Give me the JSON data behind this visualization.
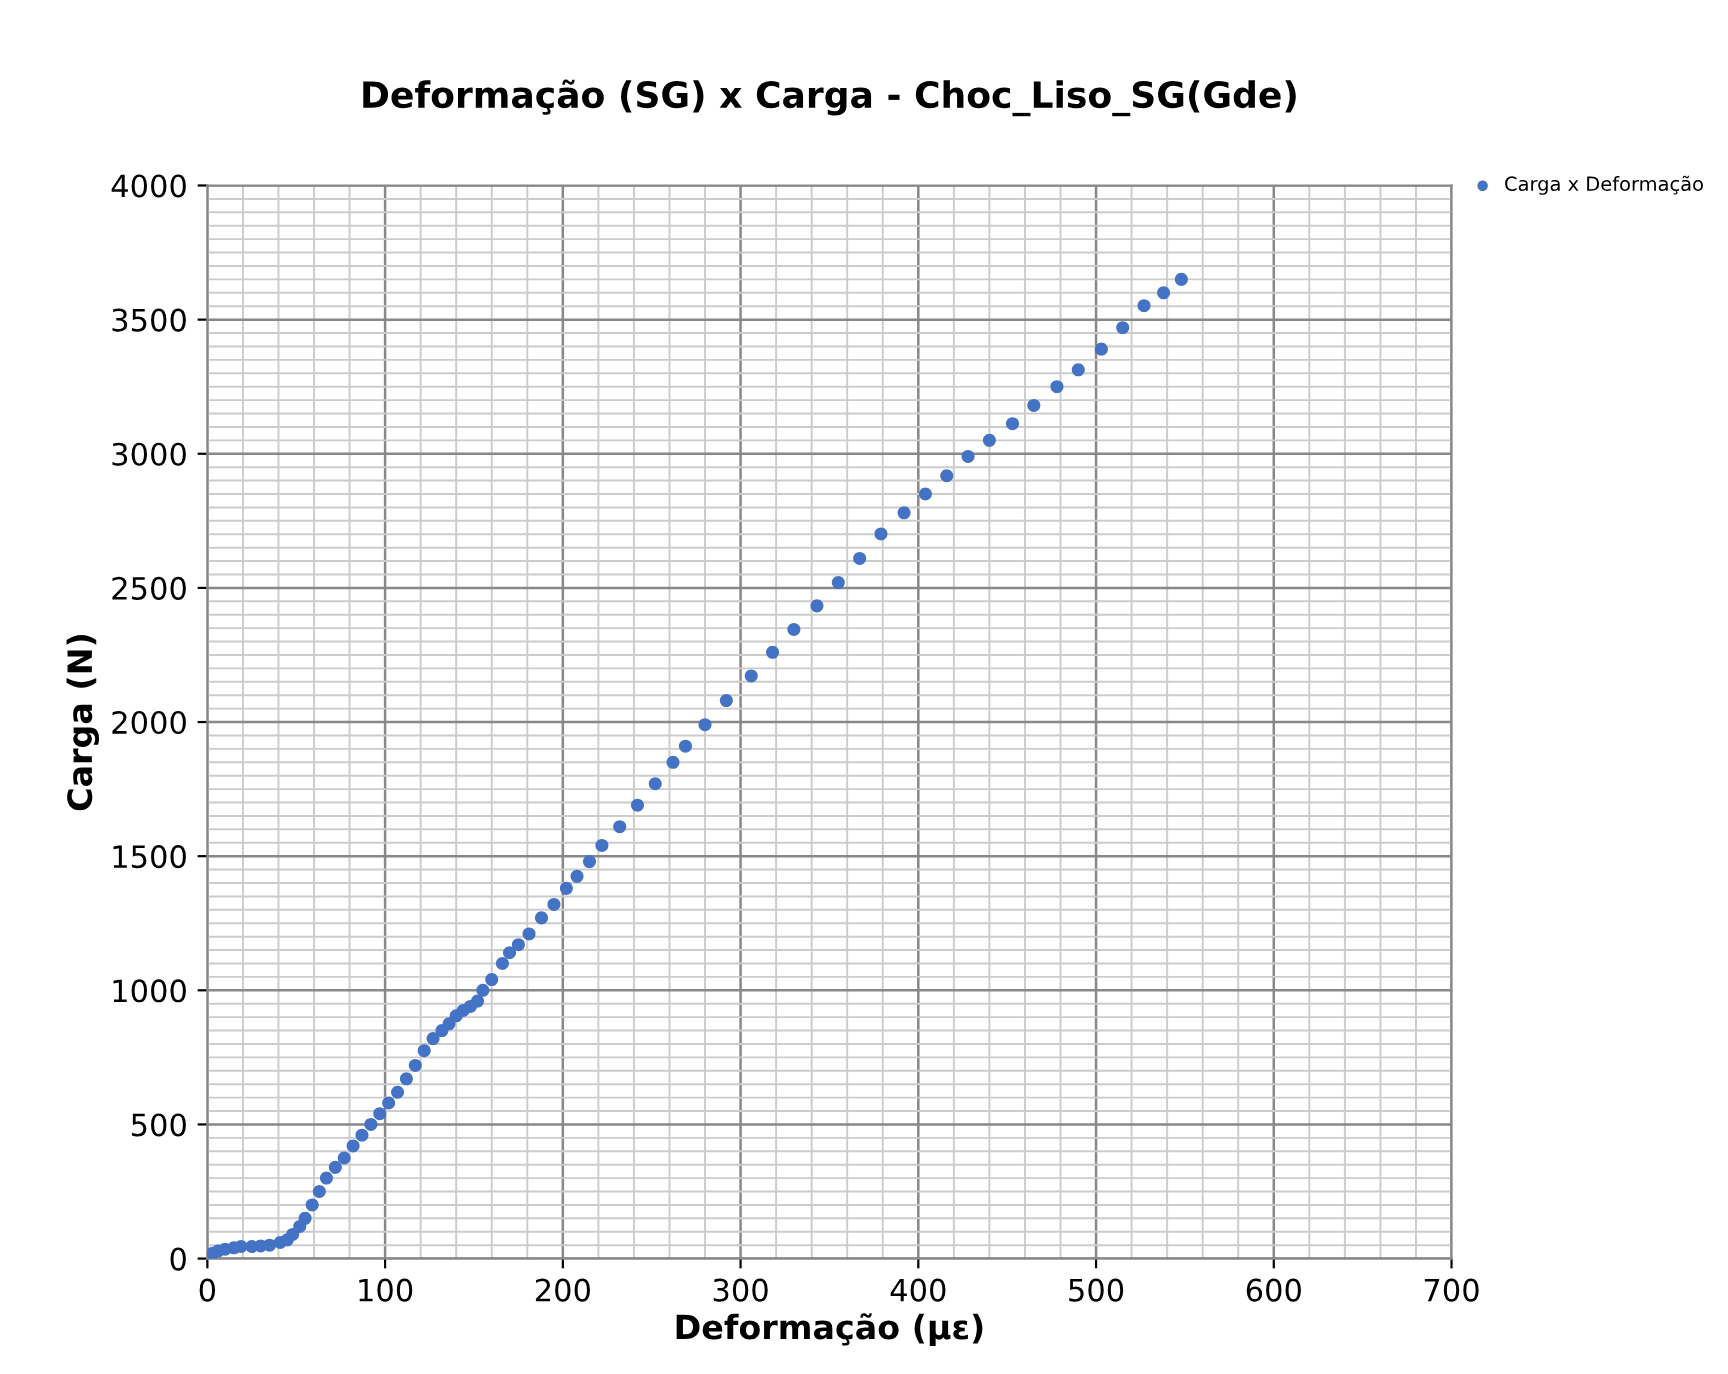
{
  "chart_data": {
    "type": "scatter",
    "title": "Deformação (SG) x Carga - Choc_Liso_SG(Gde)",
    "xlabel": "Deformação (με)",
    "ylabel": "Carga (N)",
    "x": [
      0,
      3,
      6,
      10,
      15,
      19,
      25,
      30,
      35,
      41,
      45,
      48,
      52,
      55,
      59,
      63,
      67,
      72,
      77,
      82,
      87,
      92,
      97,
      102,
      107,
      112,
      117,
      122,
      127,
      132,
      136,
      140,
      144,
      148,
      152,
      155,
      160,
      166,
      170,
      175,
      181,
      188,
      195,
      202,
      208,
      215,
      222,
      232,
      242,
      252,
      262,
      269,
      280,
      292,
      306,
      318,
      330,
      343,
      355,
      367,
      379,
      392,
      404,
      416,
      428,
      440,
      453,
      465,
      478,
      490,
      503,
      515,
      527,
      538,
      548
    ],
    "series": [
      {
        "name": "Carga x Deformação",
        "color": "#4472c4",
        "values": [
          10,
          20,
          28,
          35,
          40,
          45,
          45,
          47,
          50,
          60,
          70,
          90,
          120,
          150,
          200,
          250,
          300,
          340,
          375,
          420,
          460,
          500,
          540,
          580,
          620,
          670,
          720,
          775,
          820,
          850,
          875,
          905,
          925,
          940,
          960,
          1000,
          1040,
          1100,
          1140,
          1170,
          1210,
          1270,
          1320,
          1380,
          1425,
          1480,
          1540,
          1610,
          1690,
          1770,
          1850,
          1910,
          1990,
          2080,
          2172,
          2260,
          2345,
          2433,
          2520,
          2610,
          2701,
          2780,
          2850,
          2918,
          2990,
          3050,
          3112,
          3180,
          3250,
          3313,
          3390,
          3470,
          3552,
          3600,
          3650
        ]
      }
    ],
    "xlim": [
      0,
      700
    ],
    "xticks": [
      0,
      100,
      200,
      300,
      400,
      500,
      600,
      700
    ],
    "ylim": [
      0,
      4000
    ],
    "yticks": [
      0,
      500,
      1000,
      1500,
      2000,
      2500,
      3000,
      3500,
      4000
    ],
    "grid": true,
    "legend": "top right",
    "marker": "circle"
  }
}
